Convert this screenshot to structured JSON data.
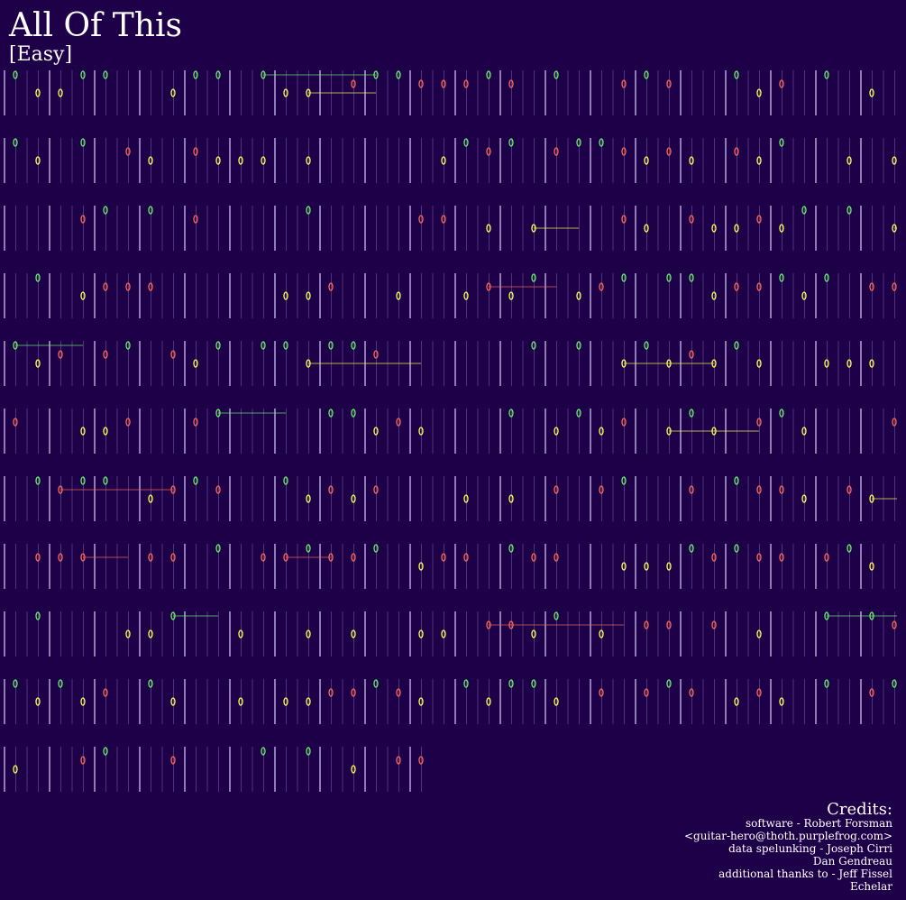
{
  "header": {
    "title": "All Of This",
    "difficulty": "[Easy]"
  },
  "credits": {
    "heading": "Credits:",
    "lines": [
      "software - Robert Forsman",
      "<guitar-hero@thoth.purplefrog.com>",
      "data spelunking - Joseph Cirri",
      "Dan Gendreau",
      "additional thanks to - Jeff Fissel",
      "Echelar"
    ]
  }
}
